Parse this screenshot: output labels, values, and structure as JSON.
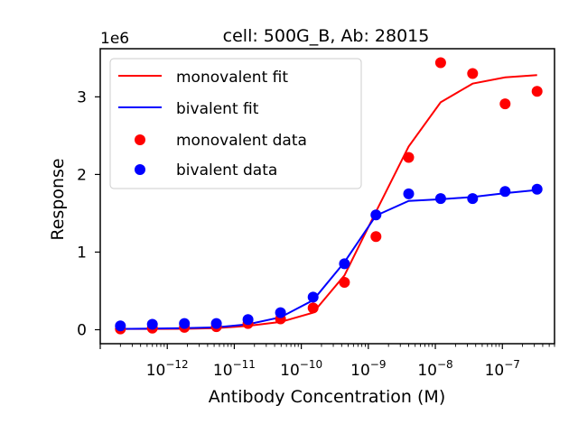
{
  "chart_data": {
    "type": "scatter",
    "title": "cell: 500G_B, Ab: 28015",
    "xlabel": "Antibody Concentration (M)",
    "ylabel": "Response",
    "y_offset_label": "1e6",
    "x_scale": "log",
    "xlim": [
      1e-13,
      6e-07
    ],
    "ylim": [
      -180000,
      3620000
    ],
    "x_ticks": [
      {
        "value": 1e-12,
        "base": "10",
        "exp": "−12"
      },
      {
        "value": 1e-11,
        "base": "10",
        "exp": "−11"
      },
      {
        "value": 1e-10,
        "base": "10",
        "exp": "−10"
      },
      {
        "value": 1e-09,
        "base": "10",
        "exp": "−9"
      },
      {
        "value": 1e-08,
        "base": "10",
        "exp": "−8"
      },
      {
        "value": 1e-07,
        "base": "10",
        "exp": "−7"
      }
    ],
    "y_ticks": [
      {
        "value": 0,
        "label": "0"
      },
      {
        "value": 1000000,
        "label": "1"
      },
      {
        "value": 2000000,
        "label": "2"
      },
      {
        "value": 3000000,
        "label": "3"
      }
    ],
    "grid": false,
    "legend_position": "top-left",
    "series": [
      {
        "name": "monovalent fit",
        "kind": "line",
        "color": "#ff0000",
        "x": [
          2e-13,
          6e-13,
          1.8e-12,
          5.4e-12,
          1.6e-11,
          4.9e-11,
          1.5e-10,
          4.4e-10,
          1.3e-09,
          4e-09,
          1.2e-08,
          3.6e-08,
          1.1e-07,
          3.3e-07
        ],
        "y": [
          10000,
          10000,
          12000,
          20000,
          50000,
          100000,
          220000,
          700000,
          1520000,
          2360000,
          2930000,
          3170000,
          3250000,
          3280000
        ]
      },
      {
        "name": "bivalent fit",
        "kind": "line",
        "color": "#0000ff",
        "x": [
          2e-13,
          6e-13,
          1.8e-12,
          5.4e-12,
          1.6e-11,
          4.9e-11,
          1.5e-10,
          4.4e-10,
          1.3e-09,
          4e-09,
          1.2e-08,
          3.6e-08,
          1.1e-07,
          3.3e-07
        ],
        "y": [
          10000,
          15000,
          20000,
          30000,
          70000,
          160000,
          380000,
          870000,
          1470000,
          1660000,
          1680000,
          1710000,
          1760000,
          1800000
        ]
      },
      {
        "name": "monovalent data",
        "kind": "scatter",
        "color": "#ff0000",
        "x": [
          2e-13,
          6e-13,
          1.8e-12,
          5.4e-12,
          1.6e-11,
          4.9e-11,
          1.5e-10,
          4.4e-10,
          1.3e-09,
          4e-09,
          1.2e-08,
          3.6e-08,
          1.1e-07,
          3.3e-07
        ],
        "y": [
          10000,
          20000,
          30000,
          40000,
          80000,
          140000,
          280000,
          610000,
          1200000,
          2220000,
          3440000,
          3300000,
          2910000,
          3070000
        ]
      },
      {
        "name": "bivalent data",
        "kind": "scatter",
        "color": "#0000ff",
        "x": [
          2e-13,
          6e-13,
          1.8e-12,
          5.4e-12,
          1.6e-11,
          4.9e-11,
          1.5e-10,
          4.4e-10,
          1.3e-09,
          4e-09,
          1.2e-08,
          3.6e-08,
          1.1e-07,
          3.3e-07
        ],
        "y": [
          50000,
          70000,
          80000,
          80000,
          130000,
          220000,
          420000,
          850000,
          1480000,
          1750000,
          1690000,
          1690000,
          1780000,
          1810000
        ]
      }
    ]
  }
}
